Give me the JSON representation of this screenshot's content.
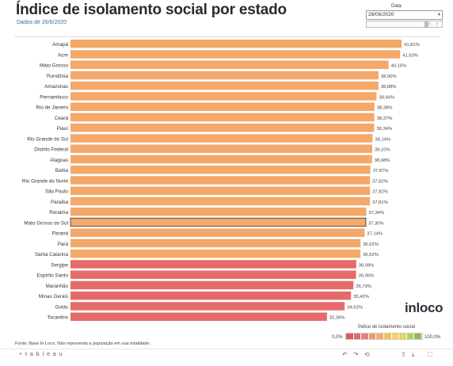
{
  "header": {
    "title": "Índice de isolamento social por estado",
    "subtitle": "Dados de 26/6/2020"
  },
  "filter": {
    "label": "Data",
    "value": "26/06/2020"
  },
  "legend": {
    "title": "Índice de isolamento social",
    "min_label": "0,0%",
    "max_label": "100,0%",
    "colors": [
      "#e05a64",
      "#e26a6e",
      "#e7807a",
      "#ec9a7a",
      "#f2ad6c",
      "#f5bf60",
      "#f7d25e",
      "#dcd866",
      "#b9cd63",
      "#8fbd5a"
    ]
  },
  "brand": "inloco",
  "footnote": "Fonte: Base In Loco. Não representa a população em sua totalidade.",
  "footer": {
    "product": "+ t a b l e a u"
  },
  "chart_data": {
    "type": "bar",
    "orientation": "horizontal",
    "xlim": [
      0,
      100
    ],
    "colors": {
      "high": "#f4a86a",
      "low": "#e56b6b"
    },
    "categories": [
      "Amapá",
      "Acre",
      "Mato Grosso",
      "Rondônia",
      "Amazonas",
      "Pernambuco",
      "Rio de Janeiro",
      "Ceará",
      "Piauí",
      "Rio Grande do Sul",
      "Distrito Federal",
      "Alagoas",
      "Bahia",
      "Rio Grande do Norte",
      "São Paulo",
      "Paraíba",
      "Roraima",
      "Mato Grosso do Sul",
      "Paraná",
      "Pará",
      "Santa Catarina",
      "Sergipe",
      "Espírito Santo",
      "Maranhão",
      "Minas Gerais",
      "Goiás",
      "Tocantins"
    ],
    "values": [
      41.81,
      41.63,
      40.16,
      38.9,
      38.88,
      38.64,
      38.38,
      38.37,
      38.34,
      38.14,
      38.1,
      38.08,
      37.87,
      37.82,
      37.82,
      37.81,
      37.34,
      37.3,
      37.14,
      36.62,
      36.62,
      36.08,
      36.06,
      35.73,
      35.42,
      34.62,
      32.39
    ],
    "labels": [
      "41,81%",
      "41,63%",
      "40,16%",
      "38,90%",
      "38,88%",
      "38,64%",
      "38,38%",
      "38,37%",
      "38,34%",
      "38,14%",
      "38,10%",
      "38,08%",
      "37,87%",
      "37,82%",
      "37,82%",
      "37,81%",
      "37,34%",
      "37,30%",
      "37,14%",
      "36,62%",
      "36,62%",
      "36,08%",
      "36,06%",
      "35,73%",
      "35,42%",
      "34,62%",
      "32,39%"
    ],
    "low_group_start_index": 21,
    "highlighted_index": 17
  }
}
